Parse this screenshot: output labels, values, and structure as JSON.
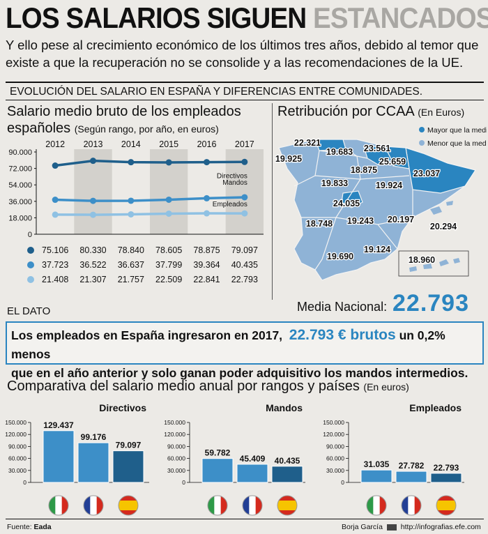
{
  "header": {
    "title_part1": "LOS SALARIOS SIGUEN",
    "title_part2": "ESTANCADOS",
    "subtitle": "Y ello pese al crecimiento económico de los últimos tres años, debido al temor que existe a que la recuperación no se consolide y a las recomendaciones de la UE."
  },
  "section_title": "EVOLUCIÓN DEL SALARIO EN ESPAÑA Y DIFERENCIAS ENTRE COMUNIDADES.",
  "line_panel": {
    "title": "Salario medio bruto de los empleados",
    "title2": "españoles",
    "note": "(Según rango, por año, en euros)"
  },
  "map_panel": {
    "title": "Retribución por CCAA",
    "note": "(En Euros)",
    "legend_above": "Mayor que la media",
    "legend_below": "Menor que la media",
    "media_label": "Media Nacional:",
    "media_value": "22.793",
    "color_above": "#2a85c0",
    "color_below": "#8fb3d6",
    "regions": [
      "22.321",
      "19.683",
      "23.561",
      "19.925",
      "18.875",
      "25.659",
      "23.037",
      "19.833",
      "19.924",
      "24.035",
      "18.748",
      "19.243",
      "20.197",
      "20.294",
      "19.690",
      "19.124",
      "18.960"
    ]
  },
  "dato": {
    "label": "EL DATO",
    "text_before": "Los empleados en España ingresaron en 2017,",
    "highlight": "22.793 € brutos",
    "text_after": "un 0,2% menos",
    "line2": "que en el año anterior y solo ganan poder adquisitivo los mandos intermedios."
  },
  "comparison": {
    "title": "Comparativa del salario medio anual por rangos y países",
    "note": "(En euros)",
    "flags": [
      "italy-flag-icon",
      "france-flag-icon",
      "spain-flag-icon"
    ]
  },
  "footer": {
    "source_label": "Fuente:",
    "source": "Eada",
    "author": "Borja García",
    "site": "http://infografias.efe.com"
  },
  "chart_data": [
    {
      "type": "line",
      "x": [
        "2012",
        "2013",
        "2014",
        "2015",
        "2016",
        "2017"
      ],
      "ylim": [
        0,
        90000
      ],
      "yticks": [
        "90.000",
        "72.000",
        "54.000",
        "36.000",
        "18.000",
        "0"
      ],
      "series": [
        {
          "name": "Directivos",
          "values": [
            75106,
            80330,
            78840,
            78605,
            78875,
            79097
          ],
          "labels": [
            "75.106",
            "80.330",
            "78.840",
            "78.605",
            "78.875",
            "79.097"
          ],
          "color": "#1f5f8b"
        },
        {
          "name": "Mandos",
          "values": [
            37723,
            36522,
            36637,
            37799,
            39364,
            40435
          ],
          "labels": [
            "37.723",
            "36.522",
            "36.637",
            "37.799",
            "39.364",
            "40.435"
          ],
          "color": "#3d8fc8"
        },
        {
          "name": "Empleados",
          "values": [
            21408,
            21307,
            21757,
            22509,
            22841,
            22793
          ],
          "labels": [
            "21.408",
            "21.307",
            "21.757",
            "22.509",
            "22.841",
            "22.793"
          ],
          "color": "#8fc1e3"
        }
      ]
    },
    {
      "type": "bar",
      "title": "Directivos",
      "ylim": [
        0,
        150000
      ],
      "yticks": [
        "150.000",
        "120.000",
        "90.000",
        "60.000",
        "30.000",
        "0"
      ],
      "values": [
        129437,
        99176,
        79097
      ],
      "labels": [
        "129.437",
        "99.176",
        "79.097"
      ],
      "colors": [
        "#3d8fc8",
        "#3d8fc8",
        "#1f5f8b"
      ]
    },
    {
      "type": "bar",
      "title": "Mandos",
      "ylim": [
        0,
        150000
      ],
      "yticks": [
        "150.000",
        "120.000",
        "90.000",
        "60.000",
        "30.000",
        "0"
      ],
      "values": [
        59782,
        45409,
        40435
      ],
      "labels": [
        "59.782",
        "45.409",
        "40.435"
      ],
      "colors": [
        "#3d8fc8",
        "#3d8fc8",
        "#1f5f8b"
      ]
    },
    {
      "type": "bar",
      "title": "Empleados",
      "ylim": [
        0,
        150000
      ],
      "yticks": [
        "150.000",
        "120.000",
        "90.000",
        "60.000",
        "30.000",
        "0"
      ],
      "values": [
        31035,
        27782,
        22793
      ],
      "labels": [
        "31.035",
        "27.782",
        "22.793"
      ],
      "colors": [
        "#3d8fc8",
        "#3d8fc8",
        "#1f5f8b"
      ]
    }
  ]
}
